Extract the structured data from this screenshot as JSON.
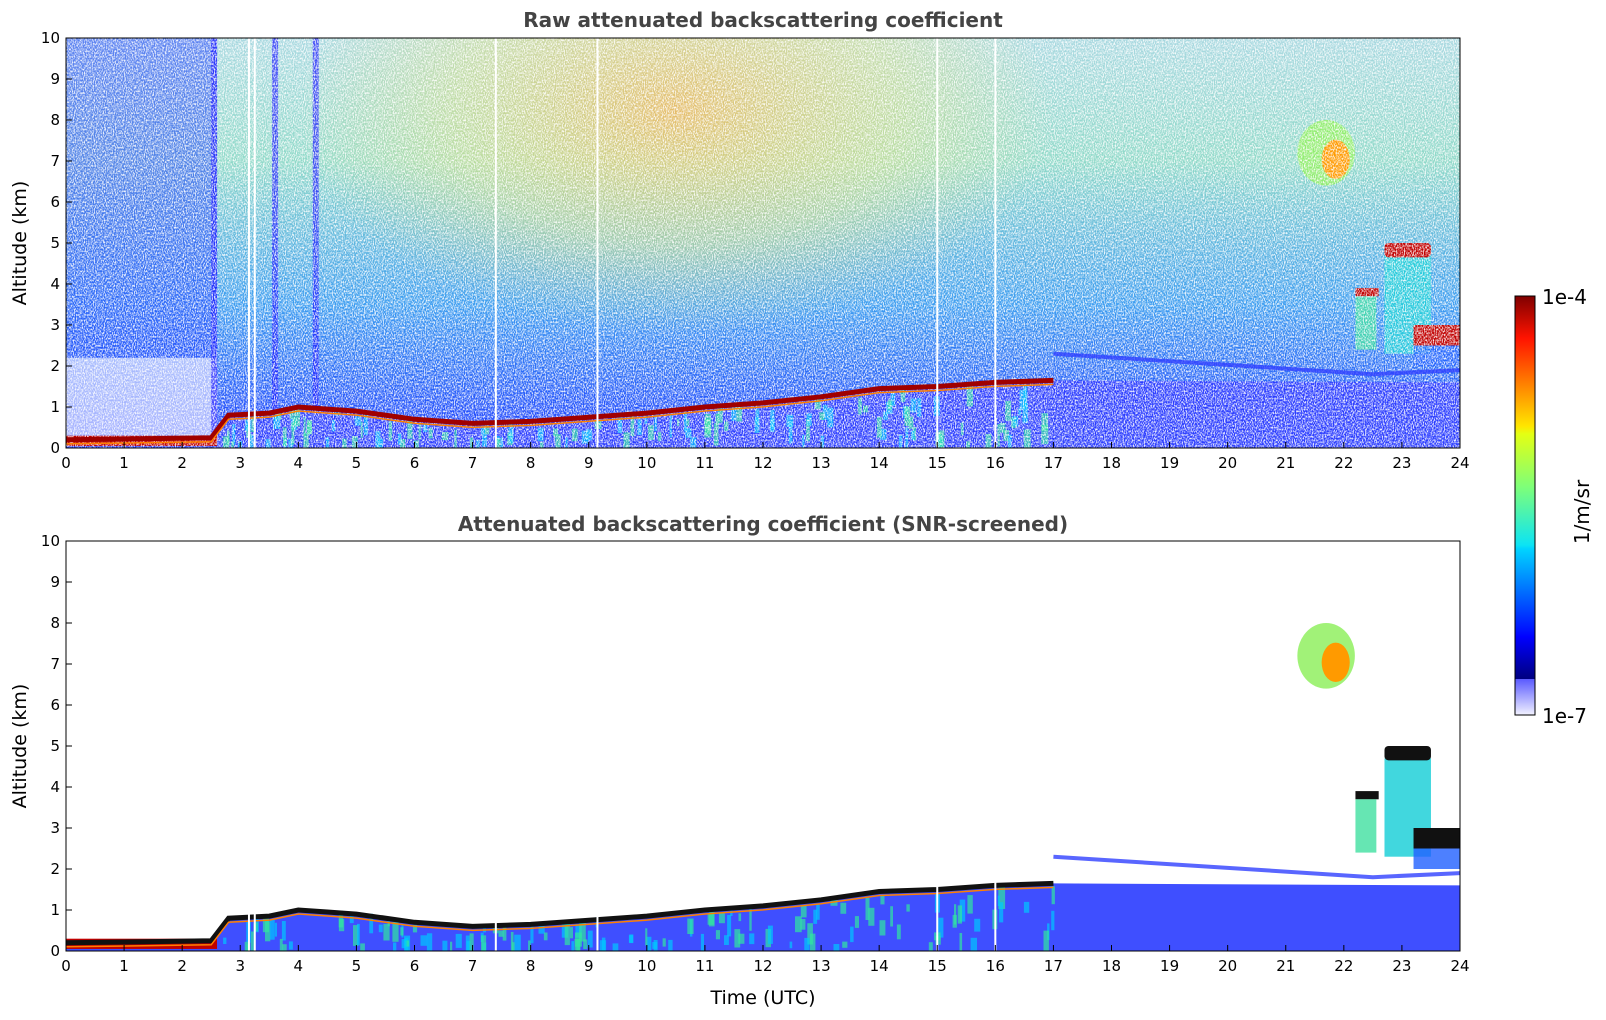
{
  "chart_data": [
    {
      "type": "heatmap",
      "title": "Raw attenuated backscattering coefficient",
      "xlabel": "",
      "ylabel": "Altitude (km)",
      "xlim": [
        0,
        24
      ],
      "ylim": [
        0,
        10
      ],
      "x_ticks": [
        "0",
        "1",
        "2",
        "3",
        "4",
        "5",
        "6",
        "7",
        "8",
        "9",
        "10",
        "11",
        "12",
        "13",
        "14",
        "15",
        "16",
        "17",
        "18",
        "19",
        "20",
        "21",
        "22",
        "23",
        "24"
      ],
      "y_ticks": [
        "0",
        "1",
        "2",
        "3",
        "4",
        "5",
        "6",
        "7",
        "8",
        "9",
        "10"
      ],
      "screened": false,
      "boundary_layer_top_km": [
        [
          0,
          0.2
        ],
        [
          2.5,
          0.25
        ],
        [
          2.8,
          0.8
        ],
        [
          3.5,
          0.85
        ],
        [
          4,
          1.0
        ],
        [
          4.5,
          0.95
        ],
        [
          5,
          0.9
        ],
        [
          6,
          0.7
        ],
        [
          7,
          0.6
        ],
        [
          8,
          0.65
        ],
        [
          9,
          0.75
        ],
        [
          10,
          0.85
        ],
        [
          11,
          1.0
        ],
        [
          12,
          1.1
        ],
        [
          13,
          1.25
        ],
        [
          14,
          1.45
        ],
        [
          15,
          1.5
        ],
        [
          16,
          1.6
        ],
        [
          17,
          1.65
        ]
      ],
      "cloud_features": [
        {
          "time_utc": [
            21.2,
            22.3
          ],
          "altitude_km": [
            6.4,
            8.0
          ]
        },
        {
          "time_utc": [
            22.7,
            23.5
          ],
          "altitude_km": [
            4.5,
            5.0
          ]
        },
        {
          "time_utc": [
            22.2,
            22.6
          ],
          "altitude_km": [
            3.7,
            3.9
          ]
        },
        {
          "time_utc": [
            23.2,
            24.0
          ],
          "altitude_km": [
            2.5,
            3.0
          ]
        }
      ]
    },
    {
      "type": "heatmap",
      "title": "Attenuated backscattering coefficient (SNR-screened)",
      "xlabel": "Time (UTC)",
      "ylabel": "Altitude (km)",
      "xlim": [
        0,
        24
      ],
      "ylim": [
        0,
        10
      ],
      "x_ticks": [
        "0",
        "1",
        "2",
        "3",
        "4",
        "5",
        "6",
        "7",
        "8",
        "9",
        "10",
        "11",
        "12",
        "13",
        "14",
        "15",
        "16",
        "17",
        "18",
        "19",
        "20",
        "21",
        "22",
        "23",
        "24"
      ],
      "y_ticks": [
        "0",
        "1",
        "2",
        "3",
        "4",
        "5",
        "6",
        "7",
        "8",
        "9",
        "10"
      ],
      "screened": true,
      "boundary_layer_top_km": [
        [
          0,
          0.2
        ],
        [
          2.5,
          0.25
        ],
        [
          2.8,
          0.8
        ],
        [
          3.5,
          0.85
        ],
        [
          4,
          1.0
        ],
        [
          4.5,
          0.95
        ],
        [
          5,
          0.9
        ],
        [
          6,
          0.7
        ],
        [
          7,
          0.6
        ],
        [
          8,
          0.65
        ],
        [
          9,
          0.75
        ],
        [
          10,
          0.85
        ],
        [
          11,
          1.0
        ],
        [
          12,
          1.1
        ],
        [
          13,
          1.25
        ],
        [
          14,
          1.45
        ],
        [
          15,
          1.5
        ],
        [
          16,
          1.6
        ],
        [
          17,
          1.65
        ]
      ],
      "cloud_features": [
        {
          "time_utc": [
            21.2,
            22.3
          ],
          "altitude_km": [
            6.4,
            8.0
          ]
        },
        {
          "time_utc": [
            22.7,
            23.5
          ],
          "altitude_km": [
            4.5,
            5.0
          ]
        },
        {
          "time_utc": [
            22.2,
            22.6
          ],
          "altitude_km": [
            3.7,
            3.9
          ]
        },
        {
          "time_utc": [
            23.2,
            24.0
          ],
          "altitude_km": [
            2.5,
            3.0
          ]
        }
      ]
    }
  ],
  "colorbar": {
    "label": "1/m/sr",
    "max_label": "1e-4",
    "min_label": "1e-7",
    "scale": "log",
    "colormap": "jet",
    "lower_extension": "light-blue"
  }
}
